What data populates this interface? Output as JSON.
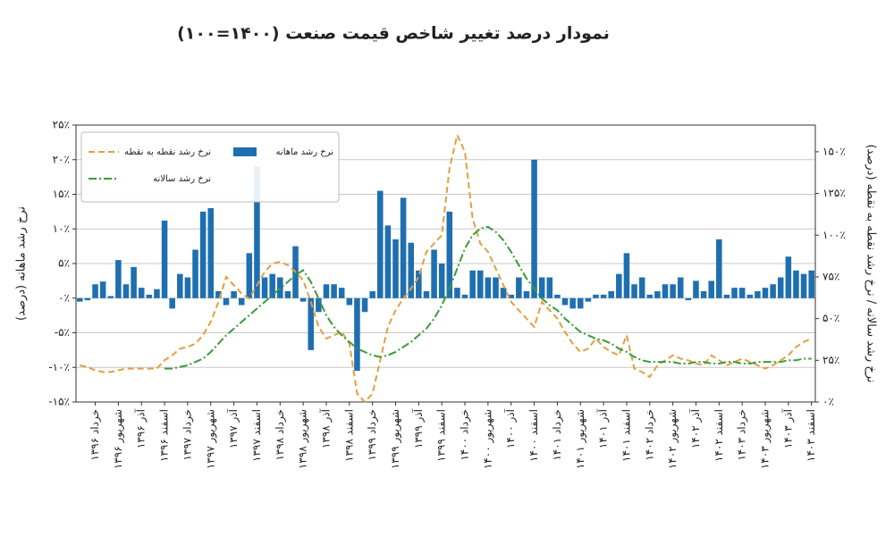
{
  "chart_data": {
    "type": "bar",
    "title": "نمودار درصد تغییر شاخص قیمت صنعت (۱۴۰۰=۱۰۰)",
    "ylabel": "نرخ رشد ماهانه (درصد)",
    "y2label": "نرخ رشد سالانه / نرخ رشد نقطه به نقطه (درصد)",
    "legend": "upper-left",
    "grid": true,
    "categories": [
      null,
      null,
      "خرداد ۱۳۹۶",
      null,
      null,
      "شهریور ۱۳۹۶",
      null,
      null,
      "آذر ۱۳۹۶",
      null,
      null,
      "اسفند ۱۳۹۶",
      null,
      null,
      "خرداد ۱۳۹۷",
      null,
      null,
      "شهریور ۱۳۹۷",
      null,
      null,
      "آذر ۱۳۹۷",
      null,
      null,
      "اسفند ۱۳۹۷",
      null,
      null,
      "خرداد ۱۳۹۸",
      null,
      null,
      "شهریور ۱۳۹۸",
      null,
      null,
      "آذر ۱۳۹۸",
      null,
      null,
      "اسفند ۱۳۹۸",
      null,
      null,
      "خرداد ۱۳۹۹",
      null,
      null,
      "شهریور ۱۳۹۹",
      null,
      null,
      "آذر ۱۳۹۹",
      null,
      null,
      "اسفند ۱۳۹۹",
      null,
      null,
      "خرداد ۱۴۰۰",
      null,
      null,
      "شهریور ۱۴۰۰",
      null,
      null,
      "آذر ۱۴۰۰",
      null,
      null,
      "اسفند ۱۴۰۰",
      null,
      null,
      "خرداد ۱۴۰۱",
      null,
      null,
      "شهریور ۱۴۰۱",
      null,
      null,
      "آذر ۱۴۰۱",
      null,
      null,
      "اسفند ۱۴۰۱",
      null,
      null,
      "خرداد ۱۴۰۲",
      null,
      null,
      "شهریور ۱۴۰۲",
      null,
      null,
      "آذر ۱۴۰۲",
      null,
      null,
      "اسفند ۱۴۰۲",
      null,
      null,
      "خرداد ۱۴۰۳",
      null,
      null,
      "شهریور ۱۴۰۳",
      null,
      null,
      "آذر ۱۴۰۳",
      null,
      null,
      "اسفند ۱۴۰۳"
    ],
    "series": [
      {
        "name": "نرخ رشد ماهانه",
        "type": "bar",
        "color": "#1f6fb0",
        "values": [
          -0.5,
          -0.3,
          2,
          2.4,
          0.3,
          5.5,
          2,
          4.5,
          1.5,
          0.5,
          1.3,
          11.2,
          -1.5,
          3.5,
          3,
          7,
          12.5,
          13,
          1,
          -1,
          1,
          -1,
          6.5,
          19,
          3,
          3.5,
          3,
          1,
          7.5,
          -0.5,
          -7.5,
          -2,
          2,
          2,
          1.5,
          -1,
          -10.5,
          -2,
          1,
          15.5,
          10.5,
          8.5,
          14.5,
          8,
          4,
          1,
          7,
          5,
          12.5,
          1.5,
          0.5,
          4,
          4,
          3,
          3,
          1.5,
          0.5,
          3,
          1,
          20,
          3,
          3,
          0.5,
          -1,
          -1.5,
          -1.5,
          -0.5,
          0.5,
          0.5,
          1,
          3.5,
          6.5,
          2,
          3,
          0.5,
          1,
          2,
          2,
          3,
          -0.3,
          2.5,
          1,
          2.5,
          8.5,
          0.5,
          1.5,
          1.5,
          0.5,
          1,
          1.5,
          2,
          3,
          6,
          4,
          3.5,
          4
        ]
      },
      {
        "name": "نرخ رشد نقطه به نقطه",
        "type": "line",
        "axis": "y2",
        "dash": "7,4",
        "color": "#e0a040",
        "values": [
          22,
          21,
          19,
          18,
          18,
          19,
          20,
          20,
          20,
          20,
          20,
          25,
          28,
          32,
          33,
          35,
          40,
          48,
          60,
          75,
          70,
          65,
          62,
          70,
          78,
          83,
          84,
          82,
          78,
          73,
          60,
          45,
          38,
          40,
          42,
          35,
          5,
          0,
          5,
          25,
          45,
          55,
          62,
          68,
          75,
          90,
          95,
          100,
          140,
          160,
          150,
          110,
          95,
          90,
          80,
          70,
          60,
          55,
          50,
          45,
          60,
          55,
          50,
          42,
          35,
          30,
          32,
          38,
          33,
          30,
          28,
          40,
          20,
          18,
          15,
          22,
          25,
          28,
          26,
          25,
          23,
          22,
          28,
          25,
          22,
          24,
          26,
          24,
          22,
          20,
          22,
          25,
          28,
          33,
          36,
          38
        ]
      },
      {
        "name": "نرخ رشد سالانه",
        "type": "line",
        "axis": "y2",
        "dash": "9,3,2,3",
        "color": "#3a9a3a",
        "values": [
          null,
          null,
          null,
          null,
          null,
          null,
          null,
          null,
          null,
          null,
          null,
          20,
          20,
          21,
          22,
          24,
          26,
          30,
          35,
          40,
          44,
          48,
          52,
          56,
          60,
          64,
          68,
          72,
          76,
          79,
          72,
          62,
          52,
          45,
          40,
          36,
          32,
          30,
          28,
          27,
          28,
          30,
          33,
          36,
          40,
          44,
          50,
          58,
          68,
          80,
          92,
          100,
          104,
          105,
          102,
          97,
          90,
          82,
          74,
          68,
          62,
          58,
          55,
          50,
          46,
          42,
          40,
          38,
          37,
          35,
          32,
          30,
          27,
          25,
          24,
          24,
          24,
          24,
          23,
          23,
          24,
          24,
          23,
          23,
          24,
          24,
          23,
          23,
          24,
          24,
          24,
          24,
          25,
          25,
          26,
          26
        ]
      }
    ],
    "ylim": [
      -15,
      25
    ],
    "yticks": [
      {
        "value": -15,
        "label": "-۱۵٪"
      },
      {
        "value": -10,
        "label": "-۱۰٪"
      },
      {
        "value": -5,
        "label": "-۵٪"
      },
      {
        "value": 0,
        "label": "۰٪"
      },
      {
        "value": 5,
        "label": "۵٪"
      },
      {
        "value": 10,
        "label": "۱۰٪"
      },
      {
        "value": 15,
        "label": "۱۵٪"
      },
      {
        "value": 20,
        "label": "۲۰٪"
      },
      {
        "value": 25,
        "label": "۲۵٪"
      }
    ],
    "y2lim": [
      0,
      166
    ],
    "y2ticks": [
      {
        "value": 0,
        "label": "۰٪"
      },
      {
        "value": 25,
        "label": "۲۵٪"
      },
      {
        "value": 50,
        "label": "۵۰٪"
      },
      {
        "value": 75,
        "label": "۷۵٪"
      },
      {
        "value": 100,
        "label": "۱۰۰٪"
      },
      {
        "value": 125,
        "label": "۱۲۵٪"
      },
      {
        "value": 150,
        "label": "۱۵۰٪"
      }
    ]
  }
}
